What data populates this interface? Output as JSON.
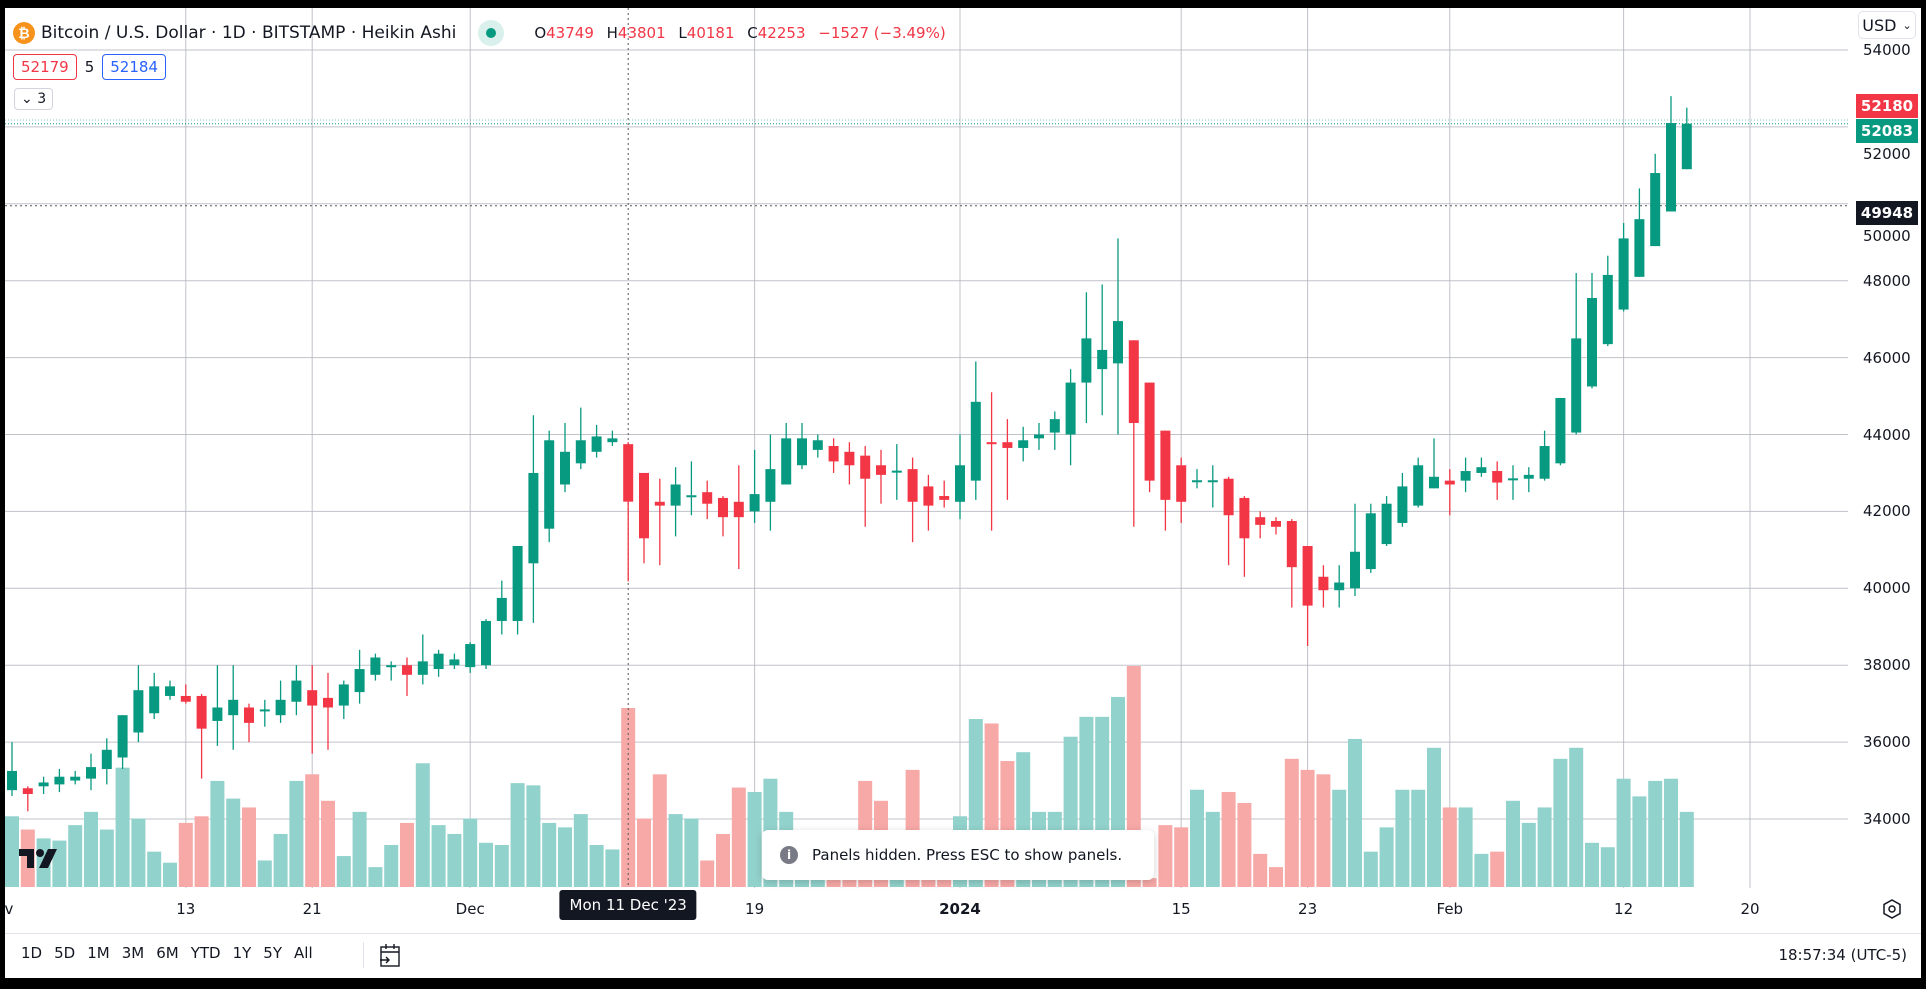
{
  "header": {
    "title": "Bitcoin / U.S. Dollar · 1D · BITSTAMP · Heikin Ashi",
    "ohlc": {
      "o_label": "O",
      "o": "43749",
      "h_label": "H",
      "h": "43801",
      "l_label": "L",
      "l": "40181",
      "c_label": "C",
      "c": "42253",
      "change": "−1527 (−3.49%)"
    },
    "sell_price": "52179",
    "spread": "5",
    "buy_price": "52184",
    "collapse_count": "3",
    "icon": "bitcoin-icon"
  },
  "price_axis": {
    "currency": "USD",
    "last_price_red": "52180",
    "last_price_green": "52083",
    "crosshair_price": "49948"
  },
  "time_axis": {
    "crosshair_date": "Mon 11 Dec '23"
  },
  "toast": {
    "text": "Panels hidden. Press ESC to show panels."
  },
  "toolbar": {
    "ranges": [
      "1D",
      "5D",
      "1M",
      "3M",
      "6M",
      "YTD",
      "1Y",
      "5Y",
      "All"
    ],
    "clock": "18:57:34 (UTC-5)"
  },
  "colors": {
    "up": "#089981",
    "down": "#f23645",
    "vol_up": "#92d2cc",
    "vol_down": "#f7a9a7",
    "grid": "#b2b5be"
  },
  "chart_data": {
    "type": "candlestick",
    "title": "Bitcoin / U.S. Dollar · 1D · BITSTAMP · Heikin Ashi",
    "ylim": [
      32300,
      54700
    ],
    "y_ticks": [
      34000,
      36000,
      38000,
      40000,
      42000,
      44000,
      46000,
      48000,
      50000,
      52000,
      54000
    ],
    "x_ticks": [
      {
        "bar": -0.6,
        "label": "v"
      },
      {
        "bar": 11,
        "label": "13"
      },
      {
        "bar": 19,
        "label": "21"
      },
      {
        "bar": 29,
        "label": "Dec"
      },
      {
        "bar": 47,
        "label": "19"
      },
      {
        "bar": 60,
        "label": "2024",
        "bold": true
      },
      {
        "bar": 74,
        "label": "15"
      },
      {
        "bar": 82,
        "label": "23"
      },
      {
        "bar": 91,
        "label": "Feb"
      },
      {
        "bar": 102,
        "label": "12"
      },
      {
        "bar": 110,
        "label": "20"
      }
    ],
    "crosshair_bar": 39,
    "volume_note": "relative volume, % of max",
    "candles": [
      [
        34750,
        36000,
        34600,
        35250,
        32
      ],
      [
        34800,
        34850,
        34200,
        34650,
        26
      ],
      [
        34850,
        35100,
        34650,
        34950,
        22
      ],
      [
        34900,
        35300,
        34700,
        35100,
        21
      ],
      [
        35000,
        35250,
        34900,
        35100,
        28
      ],
      [
        35050,
        35700,
        34750,
        35350,
        34
      ],
      [
        35300,
        36100,
        34900,
        35800,
        26
      ],
      [
        35600,
        36700,
        35300,
        36700,
        54
      ],
      [
        36250,
        38000,
        36000,
        37350,
        31
      ],
      [
        36750,
        37800,
        36600,
        37450,
        16
      ],
      [
        37200,
        37600,
        37100,
        37450,
        11
      ],
      [
        37200,
        37500,
        37000,
        37050,
        29
      ],
      [
        37200,
        37250,
        35050,
        36350,
        32
      ],
      [
        36550,
        38000,
        35900,
        36900,
        48
      ],
      [
        36700,
        38000,
        35800,
        37100,
        40
      ],
      [
        36900,
        37000,
        36000,
        36500,
        36
      ],
      [
        36800,
        37100,
        36400,
        36850,
        12
      ],
      [
        36700,
        37600,
        36500,
        37100,
        24
      ],
      [
        37050,
        38000,
        36700,
        37600,
        48
      ],
      [
        37350,
        38000,
        35700,
        36950,
        51
      ],
      [
        37150,
        37800,
        35800,
        36900,
        39
      ],
      [
        36950,
        37600,
        36600,
        37500,
        14
      ],
      [
        37300,
        38400,
        37000,
        37900,
        34
      ],
      [
        37750,
        38300,
        37600,
        38200,
        9
      ],
      [
        37950,
        38100,
        37600,
        38000,
        19
      ],
      [
        38000,
        38200,
        37200,
        37750,
        29
      ],
      [
        37750,
        38800,
        37500,
        38100,
        56
      ],
      [
        37900,
        38400,
        37700,
        38300,
        28
      ],
      [
        38000,
        38300,
        37900,
        38150,
        24
      ],
      [
        37950,
        38600,
        37800,
        38550,
        31
      ],
      [
        38000,
        39200,
        37900,
        39150,
        20
      ],
      [
        39150,
        40200,
        38800,
        39750,
        19
      ],
      [
        39150,
        41100,
        38800,
        41100,
        47
      ],
      [
        40650,
        44500,
        39100,
        43000,
        46
      ],
      [
        41550,
        44100,
        41200,
        43850,
        29
      ],
      [
        42700,
        44300,
        42500,
        43550,
        27
      ],
      [
        43250,
        44700,
        43100,
        43850,
        33
      ],
      [
        43550,
        44250,
        43400,
        43950,
        19
      ],
      [
        43800,
        44100,
        43700,
        43900,
        17
      ],
      [
        43749,
        43801,
        40181,
        42253,
        81
      ],
      [
        43000,
        43000,
        40650,
        41300,
        31
      ],
      [
        42250,
        42850,
        40600,
        42150,
        51
      ],
      [
        42150,
        43150,
        41350,
        42700,
        33
      ],
      [
        42400,
        43300,
        41900,
        42420,
        31
      ],
      [
        42500,
        42800,
        41800,
        42200,
        12
      ],
      [
        42350,
        42400,
        41350,
        41850,
        24
      ],
      [
        42250,
        43200,
        40500,
        41850,
        45
      ],
      [
        42000,
        43600,
        41700,
        42450,
        43
      ],
      [
        42250,
        44000,
        41500,
        43100,
        49
      ],
      [
        42700,
        44300,
        42700,
        43900,
        34
      ],
      [
        43200,
        44300,
        43100,
        43900,
        15
      ],
      [
        43600,
        44000,
        43400,
        43850,
        9
      ],
      [
        43700,
        43900,
        43000,
        43300,
        14
      ],
      [
        43550,
        43800,
        42700,
        43200,
        12
      ],
      [
        43450,
        43700,
        41600,
        42850,
        48
      ],
      [
        43200,
        43600,
        42200,
        42950,
        39
      ],
      [
        43050,
        43750,
        42300,
        43060,
        11
      ],
      [
        43100,
        43400,
        41200,
        42250,
        53
      ],
      [
        42650,
        42950,
        41500,
        42150,
        9
      ],
      [
        42400,
        42800,
        42100,
        42300,
        7
      ],
      [
        42250,
        44000,
        41800,
        43200,
        32
      ],
      [
        42800,
        45900,
        42300,
        44850,
        76
      ],
      [
        43800,
        45100,
        41500,
        43750,
        74
      ],
      [
        43800,
        44400,
        42300,
        43650,
        57
      ],
      [
        43650,
        44200,
        43300,
        43850,
        61
      ],
      [
        43900,
        44300,
        43600,
        44000,
        34
      ],
      [
        44050,
        44600,
        43600,
        44400,
        34
      ],
      [
        44000,
        45700,
        43200,
        45350,
        68
      ],
      [
        45350,
        47700,
        44300,
        46500,
        77
      ],
      [
        45700,
        47900,
        44500,
        46200,
        77
      ],
      [
        45850,
        49100,
        44000,
        46950,
        86
      ],
      [
        46450,
        46450,
        41600,
        44300,
        100
      ],
      [
        45350,
        45350,
        42500,
        42800,
        4
      ],
      [
        44100,
        44100,
        41500,
        42300,
        28
      ],
      [
        43200,
        43400,
        41700,
        42250,
        27
      ],
      [
        42800,
        43100,
        42600,
        42810,
        44
      ],
      [
        42800,
        43200,
        42100,
        42810,
        34
      ],
      [
        42850,
        42900,
        40600,
        41900,
        43
      ],
      [
        42350,
        42400,
        40300,
        41300,
        38
      ],
      [
        41850,
        42000,
        41300,
        41650,
        15
      ],
      [
        41750,
        41850,
        41400,
        41600,
        9
      ],
      [
        41750,
        41800,
        39500,
        40550,
        58
      ],
      [
        41100,
        41100,
        38500,
        39550,
        53
      ],
      [
        40300,
        40600,
        39500,
        39950,
        51
      ],
      [
        39950,
        40600,
        39500,
        40150,
        44
      ],
      [
        40000,
        42200,
        39800,
        40950,
        67
      ],
      [
        40500,
        42200,
        40400,
        41950,
        16
      ],
      [
        41150,
        42400,
        41100,
        42200,
        27
      ],
      [
        41700,
        43000,
        41600,
        42650,
        44
      ],
      [
        42150,
        43400,
        42100,
        43200,
        44
      ],
      [
        42600,
        43900,
        42600,
        42900,
        63
      ],
      [
        42800,
        43100,
        41900,
        42700,
        36
      ],
      [
        42800,
        43400,
        42500,
        43050,
        36
      ],
      [
        43000,
        43400,
        42900,
        43150,
        15
      ],
      [
        43050,
        43300,
        42300,
        42750,
        16
      ],
      [
        42850,
        43200,
        42300,
        42860,
        39
      ],
      [
        42850,
        43150,
        42500,
        42950,
        29
      ],
      [
        42850,
        44100,
        42800,
        43700,
        36
      ],
      [
        43250,
        44950,
        43200,
        44950,
        58
      ],
      [
        44050,
        48200,
        44000,
        46500,
        63
      ],
      [
        45250,
        48200,
        45200,
        47550,
        20
      ],
      [
        46350,
        48650,
        46300,
        48150,
        18
      ],
      [
        47250,
        49500,
        47200,
        49100,
        49
      ],
      [
        48100,
        50400,
        48100,
        49600,
        41
      ],
      [
        48900,
        51300,
        48900,
        50800,
        48
      ],
      [
        49800,
        52800,
        49800,
        52100,
        49
      ],
      [
        50900,
        52500,
        50900,
        52083,
        34
      ]
    ],
    "candle_fields": [
      "open",
      "high",
      "low",
      "close",
      "volume"
    ]
  }
}
